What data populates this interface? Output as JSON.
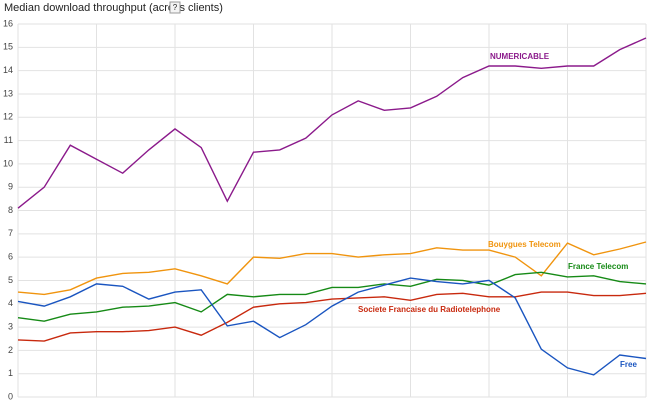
{
  "chart_data": {
    "type": "line",
    "title": "Median download throughput (across clients)",
    "help_icon": "?",
    "categories": [
      null,
      null,
      null,
      null,
      null,
      null,
      null,
      null,
      null,
      null,
      null,
      null,
      null,
      null,
      null,
      null,
      null,
      null,
      null,
      null,
      null,
      null,
      null,
      null,
      null
    ],
    "ylim": [
      0,
      16
    ],
    "yticks": [
      0,
      1,
      2,
      3,
      4,
      5,
      6,
      7,
      8,
      9,
      10,
      11,
      12,
      13,
      14,
      15,
      16
    ],
    "grid": true,
    "series": [
      {
        "name": "NUMERICABLE",
        "color": "#8b1a8b",
        "values": [
          8.1,
          9.0,
          10.8,
          10.2,
          9.6,
          10.6,
          11.5,
          10.7,
          8.4,
          10.5,
          10.6,
          11.1,
          12.1,
          12.7,
          12.3,
          12.4,
          12.9,
          13.7,
          14.2,
          14.2,
          14.1,
          14.2,
          14.2,
          14.9,
          15.4
        ]
      },
      {
        "name": "Bouygues Telecom",
        "color": "#f0940e",
        "values": [
          4.5,
          4.4,
          4.6,
          5.1,
          5.3,
          5.35,
          5.5,
          5.2,
          4.85,
          6.0,
          5.95,
          6.15,
          6.15,
          6.0,
          6.1,
          6.15,
          6.4,
          6.3,
          6.3,
          6.0,
          5.2,
          6.6,
          6.1,
          6.35,
          6.65
        ]
      },
      {
        "name": "France Telecom",
        "color": "#168a16",
        "values": [
          3.4,
          3.25,
          3.55,
          3.65,
          3.85,
          3.9,
          4.05,
          3.65,
          4.4,
          4.3,
          4.4,
          4.4,
          4.7,
          4.7,
          4.85,
          4.75,
          5.05,
          5.0,
          4.8,
          5.25,
          5.35,
          5.15,
          5.2,
          4.95,
          4.85
        ]
      },
      {
        "name": "Societe Francaise du Radiotelephone",
        "color": "#c8290e",
        "values": [
          2.45,
          2.4,
          2.75,
          2.8,
          2.8,
          2.85,
          3.0,
          2.65,
          3.2,
          3.85,
          4.0,
          4.05,
          4.2,
          4.25,
          4.3,
          4.15,
          4.4,
          4.45,
          4.3,
          4.3,
          4.5,
          4.5,
          4.35,
          4.35,
          4.45
        ]
      },
      {
        "name": "Free",
        "color": "#1a55c0",
        "values": [
          4.1,
          3.9,
          4.3,
          4.85,
          4.75,
          4.2,
          4.5,
          4.6,
          3.05,
          3.25,
          2.55,
          3.1,
          3.9,
          4.5,
          4.8,
          5.1,
          4.95,
          4.85,
          5.0,
          4.25,
          2.05,
          1.25,
          0.95,
          1.8,
          1.65
        ]
      }
    ]
  }
}
